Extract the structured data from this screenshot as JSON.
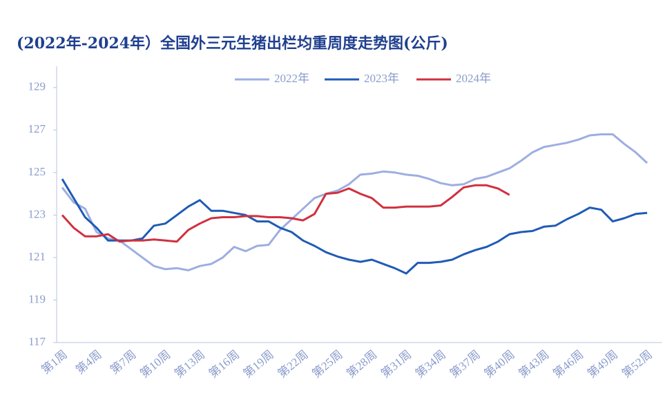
{
  "chart_data": {
    "type": "line",
    "title": "(2022年-2024年）全国外三元生猪出栏均重周度走势图(公斤)",
    "categories": [
      "第1周",
      null,
      null,
      "第4周",
      null,
      null,
      "第7周",
      null,
      null,
      "第10周",
      null,
      null,
      "第13周",
      null,
      null,
      "第16周",
      null,
      null,
      "第19周",
      null,
      null,
      "第22周",
      null,
      null,
      "第25周",
      null,
      null,
      "第28周",
      null,
      null,
      "第31周",
      null,
      null,
      "第34周",
      null,
      null,
      "第37周",
      null,
      null,
      "第40周",
      null,
      null,
      "第43周",
      null,
      null,
      "第46周",
      null,
      null,
      "第49周",
      null,
      null,
      "第52周"
    ],
    "series": [
      {
        "name": "2022年",
        "color": "#9daee0",
        "values": [
          124.3,
          123.6,
          123.3,
          122.2,
          121.9,
          121.8,
          121.4,
          121.0,
          120.6,
          120.45,
          120.5,
          120.4,
          120.6,
          120.7,
          121.0,
          121.5,
          121.3,
          121.55,
          121.6,
          122.3,
          122.8,
          123.3,
          123.8,
          124.0,
          124.15,
          124.45,
          124.9,
          124.95,
          125.05,
          125.0,
          124.9,
          124.85,
          124.7,
          124.5,
          124.4,
          124.45,
          124.7,
          124.8,
          125.0,
          125.2,
          125.55,
          125.95,
          126.2,
          126.3,
          126.4,
          126.55,
          126.75,
          126.8,
          126.8,
          126.35,
          125.95,
          125.45
        ]
      },
      {
        "name": "2023年",
        "color": "#1f5bb5",
        "values": [
          124.7,
          123.8,
          122.9,
          122.4,
          121.8,
          121.8,
          121.8,
          121.9,
          122.5,
          122.6,
          123.0,
          123.4,
          123.7,
          123.2,
          123.2,
          123.1,
          123.0,
          122.7,
          122.7,
          122.4,
          122.2,
          121.8,
          121.55,
          121.25,
          121.05,
          120.9,
          120.8,
          120.9,
          120.7,
          120.5,
          120.25,
          120.75,
          120.75,
          120.8,
          120.9,
          121.15,
          121.35,
          121.5,
          121.75,
          122.1,
          122.2,
          122.25,
          122.45,
          122.5,
          122.8,
          123.05,
          123.35,
          123.25,
          122.7,
          122.85,
          123.05,
          123.1
        ]
      },
      {
        "name": "2024年",
        "color": "#d0303f",
        "values": [
          123.0,
          122.4,
          122.0,
          122.0,
          122.1,
          121.75,
          121.8,
          121.8,
          121.85,
          121.8,
          121.75,
          122.3,
          122.6,
          122.85,
          122.9,
          122.9,
          122.95,
          122.95,
          122.9,
          122.9,
          122.85,
          122.75,
          123.05,
          124.0,
          124.05,
          124.25,
          124.0,
          123.8,
          123.35,
          123.35,
          123.4,
          123.4,
          123.4,
          123.45,
          123.85,
          124.3,
          124.4,
          124.4,
          124.25,
          123.95,
          null,
          null,
          null,
          null,
          null,
          null,
          null,
          null,
          null,
          null,
          null,
          null
        ]
      }
    ],
    "ylim": [
      117,
      130
    ],
    "yticks": [
      117,
      119,
      121,
      123,
      125,
      127,
      129
    ],
    "grid": false,
    "legend": "top"
  }
}
